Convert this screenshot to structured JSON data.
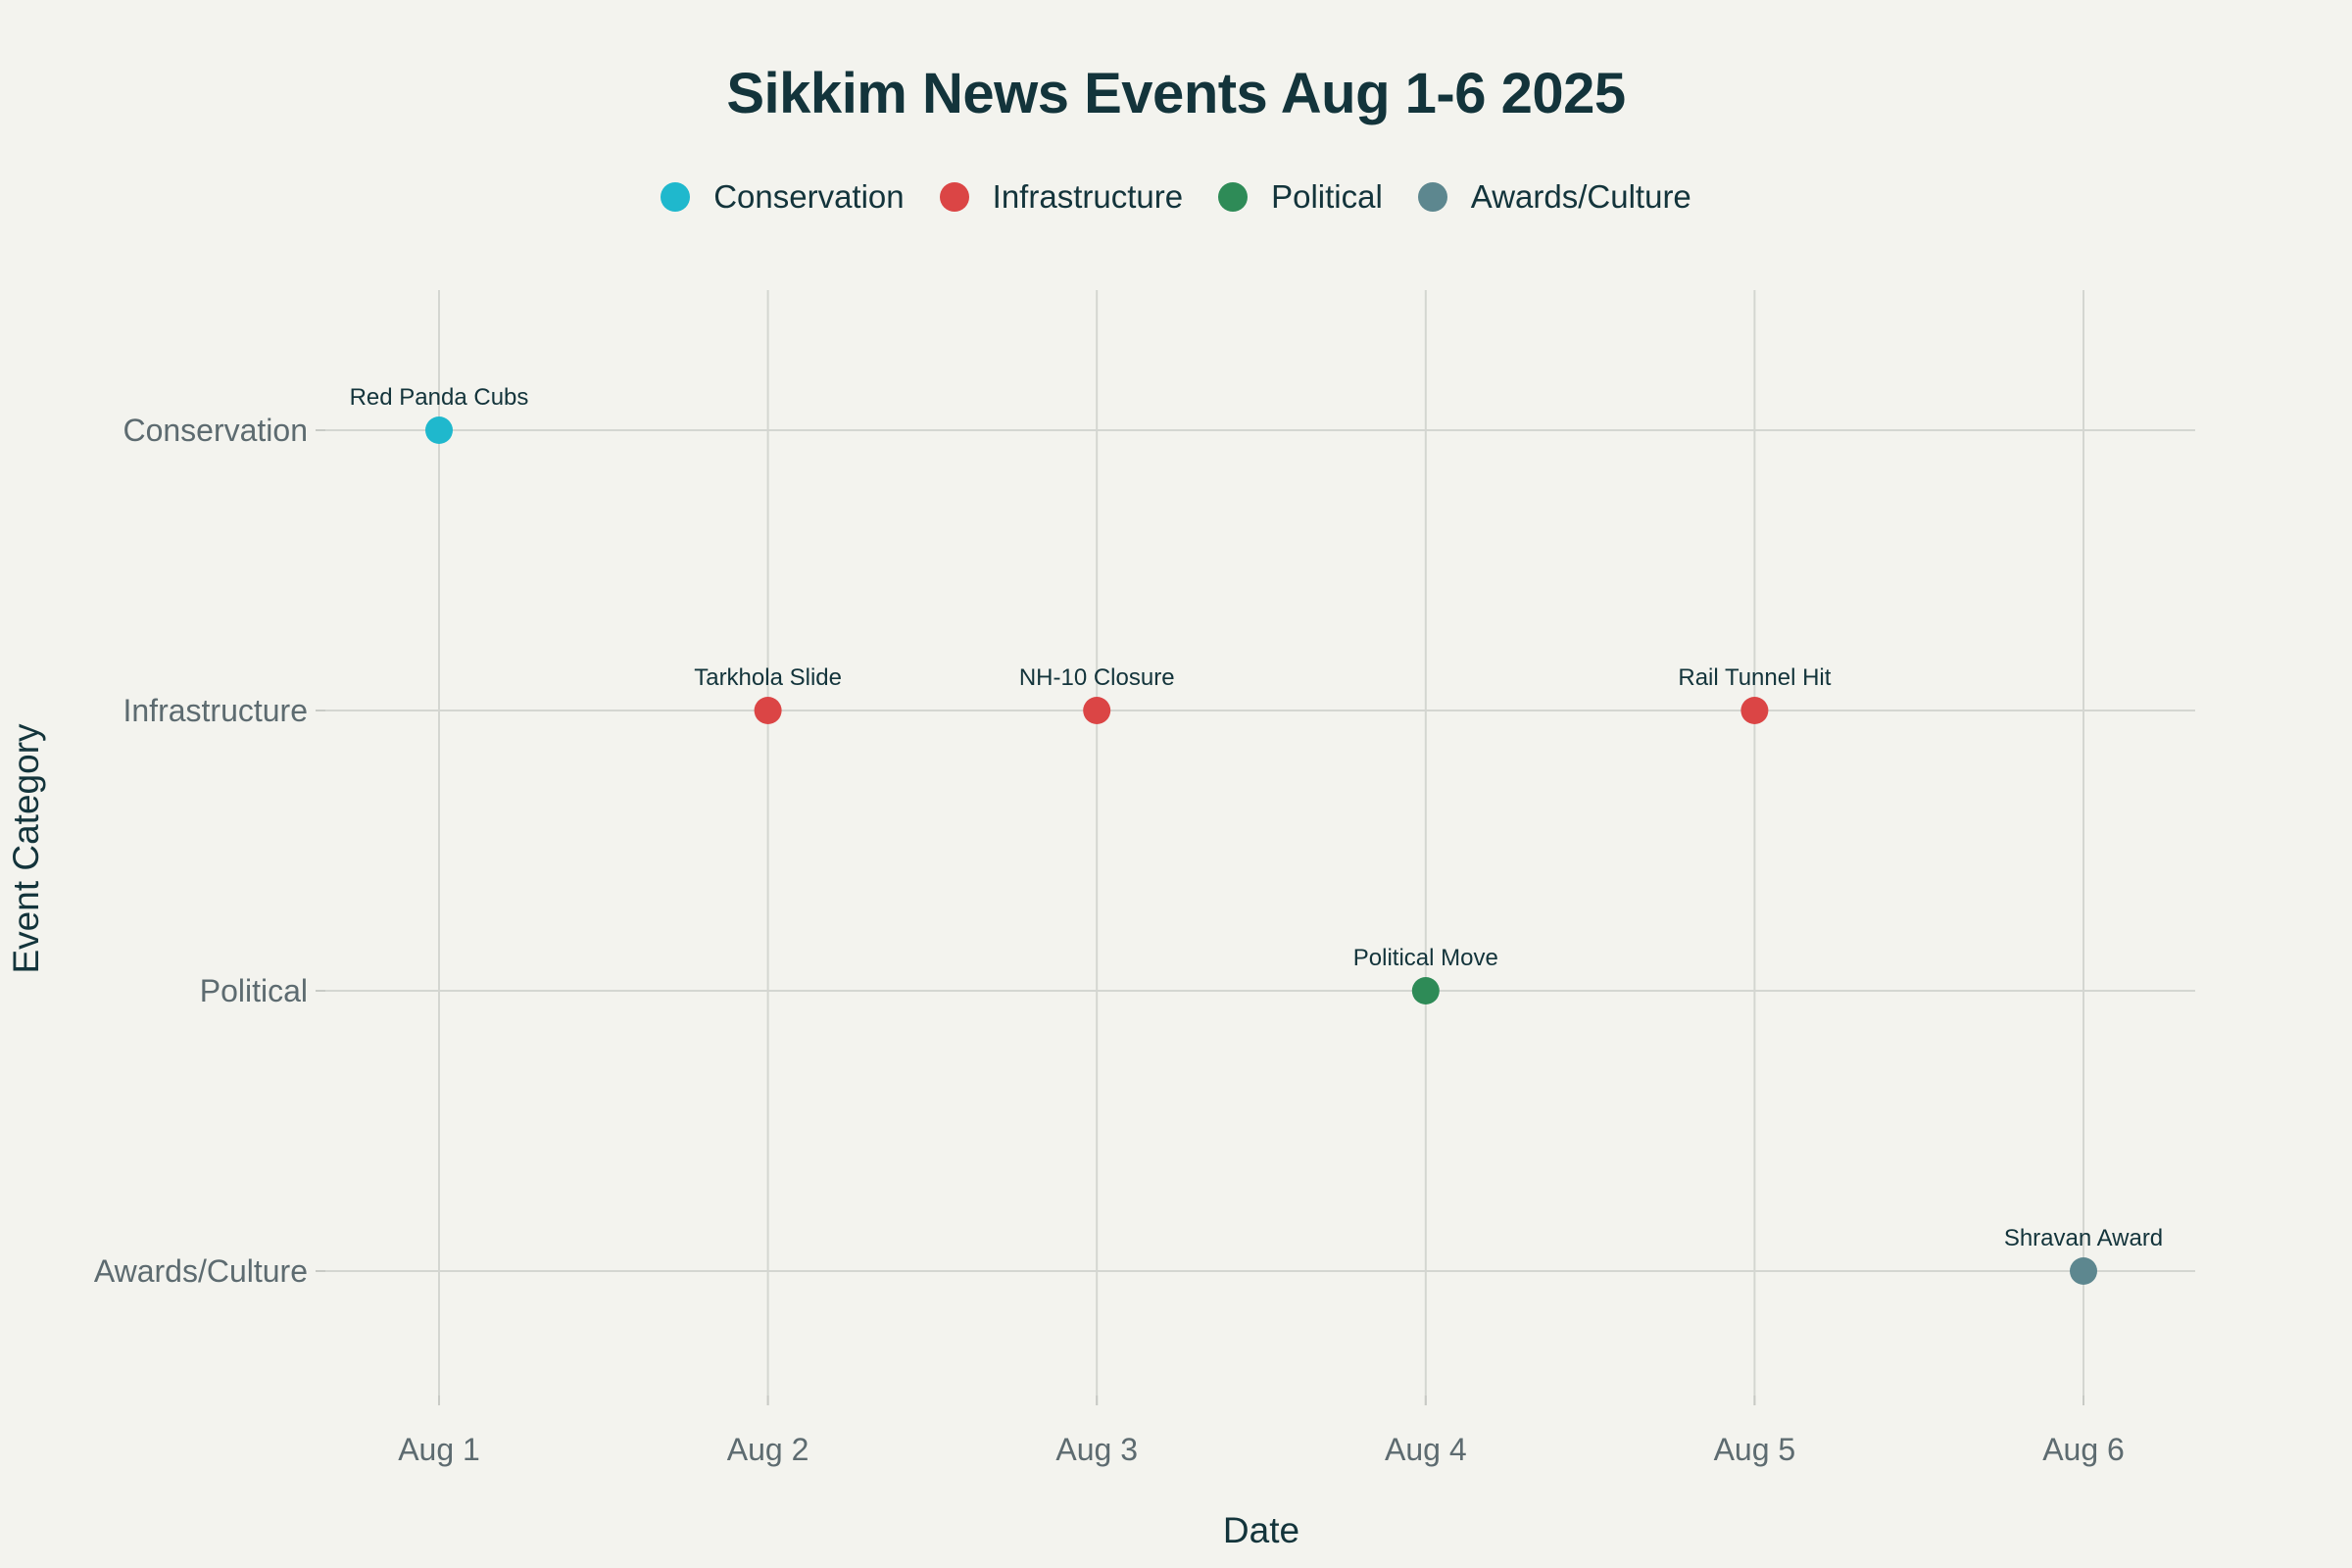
{
  "chart_data": {
    "type": "scatter",
    "title": "Sikkim News Events Aug 1-6 2025",
    "xlabel": "Date",
    "ylabel": "Event Category",
    "x_ticks": [
      "Aug 1",
      "Aug 2",
      "Aug 3",
      "Aug 4",
      "Aug 5",
      "Aug 6"
    ],
    "y_categories": [
      "Conservation",
      "Infrastructure",
      "Political",
      "Awards/Culture"
    ],
    "grid": true,
    "legend_position": "top-center",
    "series": [
      {
        "name": "Conservation",
        "color": "#1fb8cd",
        "points": [
          {
            "x": "Aug 1",
            "y": "Conservation",
            "label": "Red Panda Cubs"
          }
        ]
      },
      {
        "name": "Infrastructure",
        "color": "#db4545",
        "points": [
          {
            "x": "Aug 2",
            "y": "Infrastructure",
            "label": "Tarkhola Slide"
          },
          {
            "x": "Aug 3",
            "y": "Infrastructure",
            "label": "NH-10 Closure"
          },
          {
            "x": "Aug 5",
            "y": "Infrastructure",
            "label": "Rail Tunnel Hit"
          }
        ]
      },
      {
        "name": "Political",
        "color": "#2e8b57",
        "points": [
          {
            "x": "Aug 4",
            "y": "Political",
            "label": "Political Move"
          }
        ]
      },
      {
        "name": "Awards/Culture",
        "color": "#5d878f",
        "points": [
          {
            "x": "Aug 6",
            "y": "Awards/Culture",
            "label": "Shravan Award"
          }
        ]
      }
    ]
  }
}
